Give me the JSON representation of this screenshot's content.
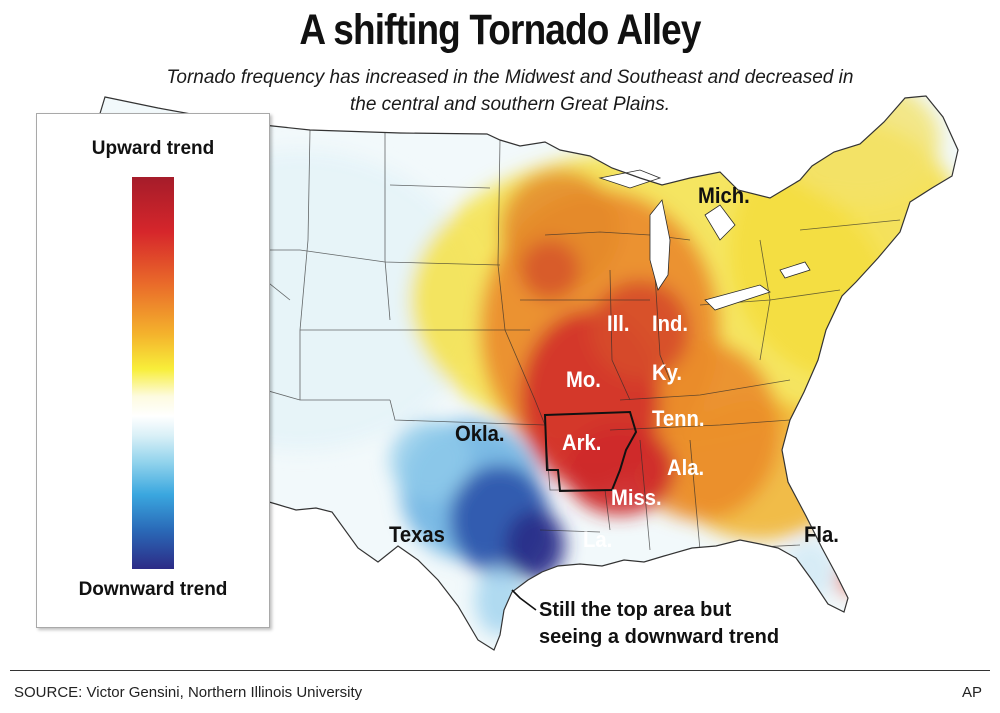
{
  "title": "A shifting Tornado Alley",
  "subtitle": "Tornado frequency has increased in the Midwest and Southeast and decreased in the central and southern Great Plains.",
  "legend": {
    "top_label": "Upward trend",
    "bottom_label": "Downward trend",
    "colors": [
      "#a51c2a",
      "#e9692a",
      "#f8ee3a",
      "#ffffff",
      "#3aa7df",
      "#2c2b86"
    ]
  },
  "state_labels": {
    "mich": "Mich.",
    "ill": "Ill.",
    "ind": "Ind.",
    "mo": "Mo.",
    "ky": "Ky.",
    "tenn": "Tenn.",
    "okla": "Okla.",
    "ark": "Ark.",
    "ala": "Ala.",
    "miss": "Miss.",
    "texas": "Texas",
    "la": "La.",
    "fla": "Fla."
  },
  "annotation": {
    "line1": "Still the top area but",
    "line2": "seeing a downward trend"
  },
  "source": "SOURCE: Victor Gensini, Northern Illinois University",
  "credit": "AP"
}
